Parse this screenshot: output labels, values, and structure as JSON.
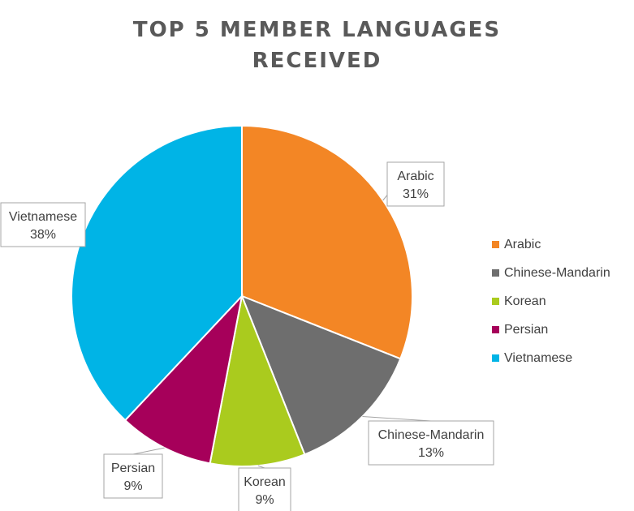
{
  "chart_data": {
    "type": "pie",
    "title_lines": [
      "TOP 5 MEMBER LANGUAGES",
      "RECEIVED"
    ],
    "categories": [
      "Arabic",
      "Chinese-Mandarin",
      "Korean",
      "Persian",
      "Vietnamese"
    ],
    "values": [
      31,
      13,
      9,
      9,
      38
    ],
    "value_labels": [
      "31%",
      "13%",
      "9%",
      "9%",
      "38%"
    ],
    "colors": [
      "#F38625",
      "#6E6E6E",
      "#AACB1E",
      "#A6005A",
      "#00B4E6"
    ],
    "legend_position": "right",
    "data_labels": "callout"
  }
}
